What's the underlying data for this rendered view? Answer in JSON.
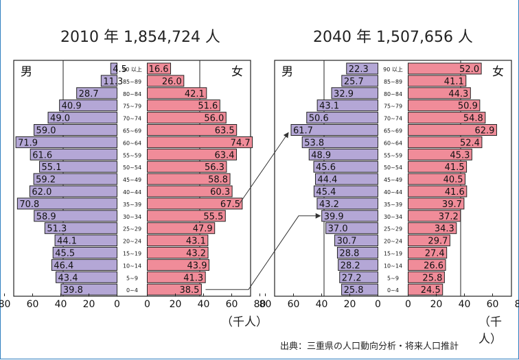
{
  "unit_label": "（千人）",
  "source": "出典：三重県の人口動向分析・将来人口推計",
  "colors": {
    "male": "#b4a7d6",
    "female": "#f08c99",
    "frame": "#2f7fbf",
    "arrow": "#333333"
  },
  "chart_data": [
    {
      "type": "bar",
      "title": "2010 年 1,854,724 人",
      "male_label": "男",
      "female_label": "女",
      "categories": [
        "90 以上",
        "85~89",
        "80~84",
        "75~79",
        "70~74",
        "65~69",
        "60~64",
        "55~59",
        "50~54",
        "45~49",
        "40~44",
        "35~39",
        "30~34",
        "25~29",
        "20~24",
        "15~19",
        "10~14",
        "5~9",
        "0~4"
      ],
      "series": [
        {
          "name": "男",
          "values": [
            4.5,
            11.3,
            28.7,
            40.9,
            49.0,
            59.0,
            71.9,
            61.6,
            55.1,
            59.2,
            62.0,
            70.8,
            58.9,
            51.3,
            44.1,
            45.5,
            46.4,
            43.4,
            39.8
          ]
        },
        {
          "name": "女",
          "values": [
            16.6,
            26.0,
            42.1,
            51.6,
            56.0,
            63.5,
            74.7,
            63.4,
            56.3,
            58.8,
            60.3,
            67.5,
            55.5,
            47.9,
            43.1,
            43.2,
            43.9,
            41.3,
            38.5
          ]
        }
      ],
      "xlim": [
        0,
        80
      ],
      "ticks": [
        "80",
        "60",
        "40",
        "20",
        "0",
        "20",
        "40",
        "60",
        "80"
      ]
    },
    {
      "type": "bar",
      "title": "2040 年 1,507,656 人",
      "male_label": "男",
      "female_label": "女",
      "categories": [
        "90 以上",
        "85~89",
        "80~84",
        "75~79",
        "70~74",
        "65~69",
        "60~64",
        "55~59",
        "50~54",
        "45~49",
        "40~44",
        "35~39",
        "30~34",
        "25~29",
        "20~24",
        "15~19",
        "10~14",
        "5~9",
        "0~4"
      ],
      "series": [
        {
          "name": "男",
          "values": [
            22.3,
            25.7,
            32.9,
            43.1,
            50.6,
            61.7,
            53.8,
            48.9,
            45.6,
            44.4,
            45.4,
            43.2,
            39.9,
            37.0,
            30.7,
            28.8,
            28.2,
            27.2,
            25.8
          ]
        },
        {
          "name": "女",
          "values": [
            52.0,
            41.1,
            44.3,
            50.9,
            54.8,
            62.9,
            52.4,
            45.3,
            41.5,
            40.5,
            41.6,
            39.7,
            37.2,
            34.3,
            29.7,
            27.4,
            26.6,
            25.8,
            24.5
          ]
        }
      ],
      "xlim": [
        0,
        80
      ],
      "ticks": [
        "80",
        "60",
        "40",
        "20",
        "0",
        "20",
        "40",
        "60",
        "80"
      ]
    }
  ]
}
